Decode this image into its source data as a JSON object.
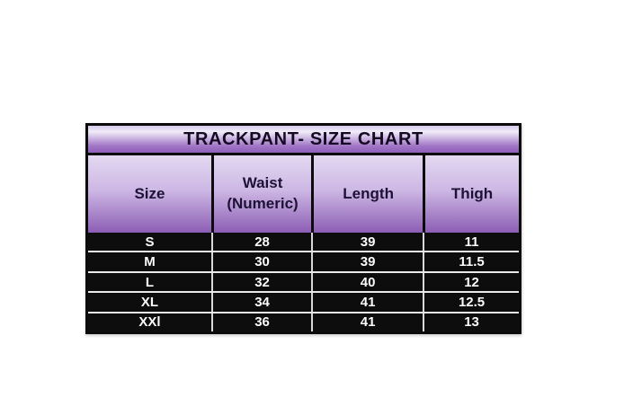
{
  "chart_data": {
    "type": "table",
    "title": "TRACKPANT- SIZE CHART",
    "columns": [
      "Size",
      "Waist (Numeric)",
      "Length",
      "Thigh"
    ],
    "rows": [
      [
        "S",
        "28",
        "39",
        "11"
      ],
      [
        "M",
        "30",
        "39",
        "11.5"
      ],
      [
        "L",
        "32",
        "40",
        "12"
      ],
      [
        "XL",
        "34",
        "41",
        "12.5"
      ],
      [
        "XXl",
        "36",
        "41",
        "13"
      ]
    ]
  },
  "colors": {
    "page_background": "#ffffff",
    "table_border": "#0b0b0b",
    "header_gradient_top": "#e3d9f1",
    "header_gradient_bottom": "#8c5eb5",
    "title_gradient_light": "#f1ecf8",
    "title_gradient_bottom": "#8f5fba",
    "header_text": "#1d1235",
    "data_row_background": "#0d0d0d",
    "data_text": "#fbfbfb",
    "row_separator": "#e9e9e9"
  }
}
